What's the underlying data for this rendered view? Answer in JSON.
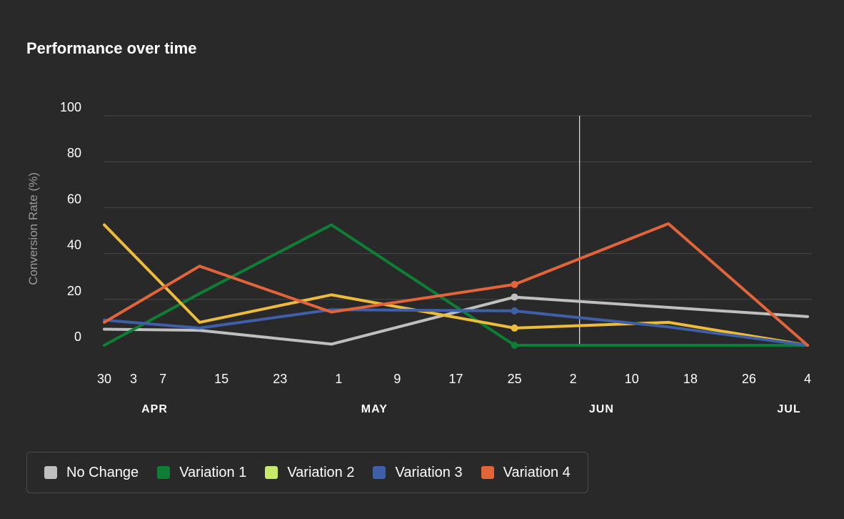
{
  "chart_data": {
    "type": "line",
    "title": "Performance over time",
    "ylabel": "Conversion Rate (%)",
    "xlabel": "",
    "ylim": [
      0,
      100
    ],
    "y_ticks": [
      0,
      20,
      40,
      60,
      80,
      100
    ],
    "xlim": [
      "2023-03-30",
      "2023-07-04"
    ],
    "x_tick_labels": [
      {
        "date": "2023-03-30",
        "label": "30"
      },
      {
        "date": "2023-04-03",
        "label": "3"
      },
      {
        "date": "2023-04-07",
        "label": "7"
      },
      {
        "date": "2023-04-15",
        "label": "15"
      },
      {
        "date": "2023-04-23",
        "label": "23"
      },
      {
        "date": "2023-05-01",
        "label": "1"
      },
      {
        "date": "2023-05-09",
        "label": "9"
      },
      {
        "date": "2023-05-17",
        "label": "17"
      },
      {
        "date": "2023-05-25",
        "label": "25"
      },
      {
        "date": "2023-06-02",
        "label": "2"
      },
      {
        "date": "2023-06-10",
        "label": "10"
      },
      {
        "date": "2023-06-18",
        "label": "18"
      },
      {
        "date": "2023-06-26",
        "label": "26"
      },
      {
        "date": "2023-07-04",
        "label": "4"
      }
    ],
    "month_labels": [
      {
        "date": "2023-04-01",
        "label": "APR"
      },
      {
        "date": "2023-05-01",
        "label": "MAY"
      },
      {
        "date": "2023-06-01",
        "label": "JUN"
      },
      {
        "date": "2023-07-01",
        "label": "JUL"
      }
    ],
    "reference_line_date": "2023-06-02",
    "grid": true,
    "legend_position": "bottom-left",
    "series": [
      {
        "name": "No Change",
        "color": "#bfbfbf",
        "x": [
          "2023-03-30",
          "2023-04-12",
          "2023-04-30",
          "2023-05-25",
          "2023-06-15",
          "2023-07-04"
        ],
        "y": [
          7,
          6.5,
          0.5,
          21,
          16.5,
          12.5
        ],
        "markers": [
          "2023-05-25"
        ]
      },
      {
        "name": "Variation 1",
        "color": "#0d7f35",
        "x": [
          "2023-03-30",
          "2023-04-12",
          "2023-04-30",
          "2023-05-25",
          "2023-06-15",
          "2023-07-04"
        ],
        "y": [
          0,
          22.5,
          52.5,
          0,
          0,
          0
        ],
        "markers": [
          "2023-05-25"
        ]
      },
      {
        "name": "Variation 2",
        "color": "#edbc3a",
        "legend_color": "#c6eb6b",
        "x": [
          "2023-03-30",
          "2023-04-12",
          "2023-04-30",
          "2023-05-25",
          "2023-06-15",
          "2023-07-04"
        ],
        "y": [
          52.5,
          10,
          22,
          7.5,
          10,
          0
        ],
        "markers": [
          "2023-05-25"
        ]
      },
      {
        "name": "Variation 3",
        "color": "#3f5fa8",
        "x": [
          "2023-03-30",
          "2023-04-12",
          "2023-04-30",
          "2023-05-25",
          "2023-06-15",
          "2023-07-04"
        ],
        "y": [
          11,
          7.5,
          15.5,
          15,
          8,
          0
        ],
        "markers": [
          "2023-05-25"
        ]
      },
      {
        "name": "Variation 4",
        "color": "#e1643b",
        "x": [
          "2023-03-30",
          "2023-04-12",
          "2023-04-30",
          "2023-05-25",
          "2023-06-15",
          "2023-07-04"
        ],
        "y": [
          10,
          34.5,
          14.5,
          26.5,
          53,
          0
        ],
        "markers": [
          "2023-05-25"
        ]
      }
    ]
  }
}
